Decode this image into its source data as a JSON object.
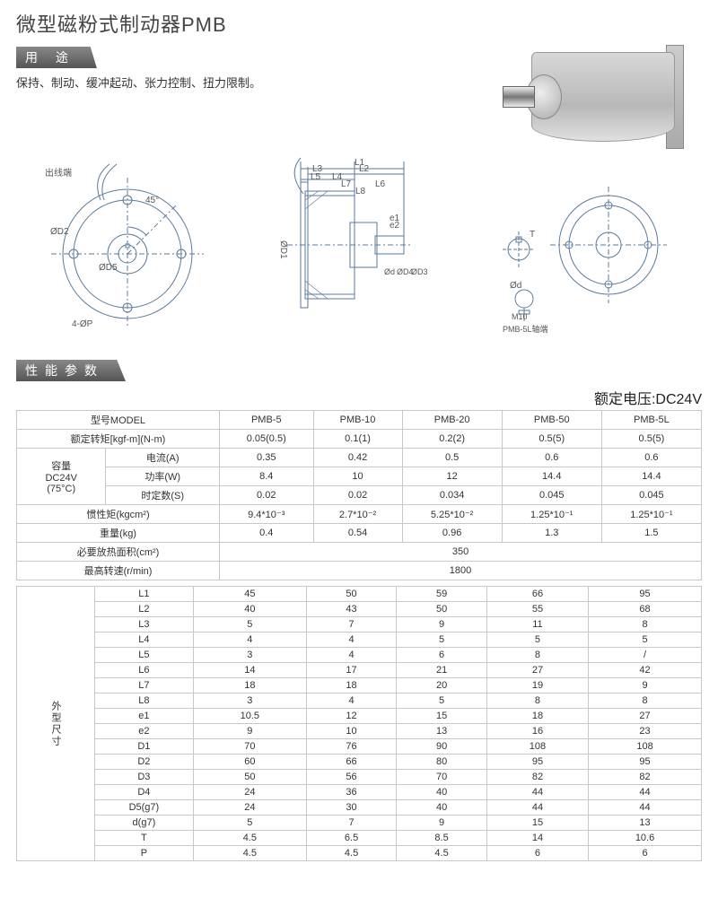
{
  "title": "微型磁粉式制动器PMB",
  "section_usage": "用 途",
  "usage_text": "保持、制动、缓冲起动、张力控制、扭力限制。",
  "section_spec": "性能参数",
  "rated_voltage_label": "额定电压:DC24V",
  "diagram_labels": {
    "wire": "出线端",
    "angle": "45°",
    "d2": "ØD2",
    "d5": "ØD5",
    "holes": "4-ØP",
    "d1": "ØD1",
    "l1": "L1",
    "l2": "L2",
    "l3": "L3",
    "l4": "L4",
    "l5": "L5",
    "l6": "L6",
    "l7": "L7",
    "l8": "L8",
    "e1": "e1",
    "e2": "e2",
    "od": "Ød",
    "od4": "ØD4",
    "od3": "ØD3",
    "t": "T",
    "m10": "M10",
    "shaft_note": "PMB-5L轴端"
  },
  "spec_table": {
    "header_model": "型号MODEL",
    "models": [
      "PMB-5",
      "PMB-10",
      "PMB-20",
      "PMB-50",
      "PMB-5L"
    ],
    "rated_torque_label": "额定转矩[kgf-m](N-m)",
    "rated_torque": [
      "0.05(0.5)",
      "0.1(1)",
      "0.2(2)",
      "0.5(5)",
      "0.5(5)"
    ],
    "capacity_label": "容量\nDC24V\n(75°C)",
    "current_label": "电流(A)",
    "current": [
      "0.35",
      "0.42",
      "0.5",
      "0.6",
      "0.6"
    ],
    "power_label": "功率(W)",
    "power": [
      "8.4",
      "10",
      "12",
      "14.4",
      "14.4"
    ],
    "time_label": "时定数(S)",
    "time": [
      "0.02",
      "0.02",
      "0.034",
      "0.045",
      "0.045"
    ],
    "inertia_label": "惯性矩(kgcm²)",
    "inertia": [
      "9.4*10⁻³",
      "2.7*10⁻²",
      "5.25*10⁻²",
      "1.25*10⁻¹",
      "1.25*10⁻¹"
    ],
    "weight_label": "重量(kg)",
    "weight": [
      "0.4",
      "0.54",
      "0.96",
      "1.3",
      "1.5"
    ],
    "heat_label": "必要放热面积(cm²)",
    "heat_value": "350",
    "maxrpm_label": "最高转速(r/min)",
    "maxrpm_value": "1800"
  },
  "dim_table": {
    "side_label": "外型尺寸",
    "rows": [
      {
        "k": "L1",
        "v": [
          "45",
          "50",
          "59",
          "66",
          "95"
        ]
      },
      {
        "k": "L2",
        "v": [
          "40",
          "43",
          "50",
          "55",
          "68"
        ]
      },
      {
        "k": "L3",
        "v": [
          "5",
          "7",
          "9",
          "11",
          "8"
        ]
      },
      {
        "k": "L4",
        "v": [
          "4",
          "4",
          "5",
          "5",
          "5"
        ]
      },
      {
        "k": "L5",
        "v": [
          "3",
          "4",
          "6",
          "8",
          "/"
        ]
      },
      {
        "k": "L6",
        "v": [
          "14",
          "17",
          "21",
          "27",
          "42"
        ]
      },
      {
        "k": "L7",
        "v": [
          "18",
          "18",
          "20",
          "19",
          "9"
        ]
      },
      {
        "k": "L8",
        "v": [
          "3",
          "4",
          "5",
          "8",
          "8"
        ]
      },
      {
        "k": "e1",
        "v": [
          "10.5",
          "12",
          "15",
          "18",
          "27"
        ]
      },
      {
        "k": "e2",
        "v": [
          "9",
          "10",
          "13",
          "16",
          "23"
        ]
      },
      {
        "k": "D1",
        "v": [
          "70",
          "76",
          "90",
          "108",
          "108"
        ]
      },
      {
        "k": "D2",
        "v": [
          "60",
          "66",
          "80",
          "95",
          "95"
        ]
      },
      {
        "k": "D3",
        "v": [
          "50",
          "56",
          "70",
          "82",
          "82"
        ]
      },
      {
        "k": "D4",
        "v": [
          "24",
          "36",
          "40",
          "44",
          "44"
        ]
      },
      {
        "k": "D5(g7)",
        "v": [
          "24",
          "30",
          "40",
          "44",
          "44"
        ]
      },
      {
        "k": "d(g7)",
        "v": [
          "5",
          "7",
          "9",
          "15",
          "13"
        ]
      },
      {
        "k": "T",
        "v": [
          "4.5",
          "6.5",
          "8.5",
          "14",
          "10.6"
        ]
      },
      {
        "k": "P",
        "v": [
          "4.5",
          "4.5",
          "4.5",
          "6",
          "6"
        ]
      }
    ]
  },
  "colors": {
    "border": "#c8c8c8",
    "text": "#333333",
    "header_bg_dark": "#555555",
    "diagram_line": "#4a6a8a"
  }
}
